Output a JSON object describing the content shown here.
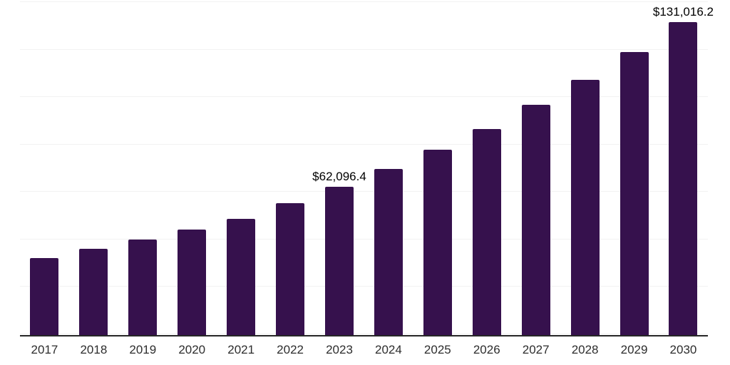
{
  "chart_data": {
    "type": "bar",
    "title": "",
    "xlabel": "",
    "ylabel": "",
    "categories": [
      "2017",
      "2018",
      "2019",
      "2020",
      "2021",
      "2022",
      "2023",
      "2024",
      "2025",
      "2026",
      "2027",
      "2028",
      "2029",
      "2030"
    ],
    "values": [
      32100,
      36100,
      39900,
      44100,
      48500,
      55100,
      62096.4,
      69400,
      77500,
      86200,
      96200,
      106700,
      118400,
      131016.2
    ],
    "data_labels": [
      "",
      "",
      "",
      "",
      "",
      "",
      "$62,096.4",
      "",
      "",
      "",
      "",
      "",
      "",
      "$131,016.2"
    ],
    "value_prefix": "$",
    "ylim": [
      0,
      139500
    ],
    "grid": "horizontal",
    "gridline_count": 8,
    "legend": "none",
    "bar_color": "#36114d",
    "grid_color": "#f2f2f2",
    "axis_color": "#262626",
    "value_text_color": "#000000",
    "tick_text_color": "#2d2d2d",
    "background_color": "#ffffff"
  }
}
